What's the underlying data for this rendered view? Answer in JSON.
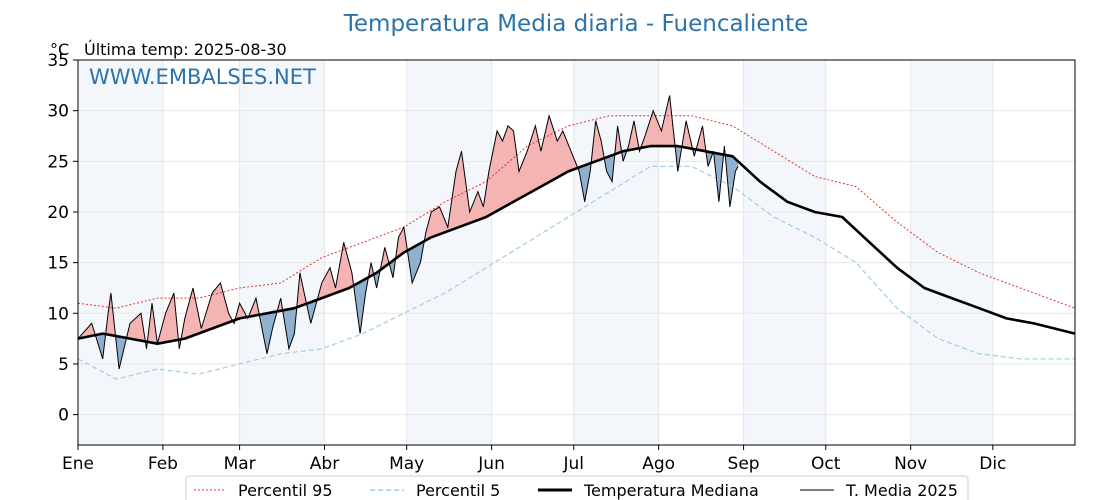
{
  "chart_data": {
    "type": "line",
    "title": "Temperatura Media diaria - Fuencaliente",
    "unit_label": "°C",
    "last_temp_label": "Última temp: 2025-08-30",
    "watermark": "WWW.EMBALSES.NET",
    "ylim": [
      -3,
      35
    ],
    "y_ticks": [
      0,
      5,
      10,
      15,
      20,
      25,
      30,
      35
    ],
    "x_day_range": [
      1,
      365
    ],
    "months": [
      {
        "label": "Ene",
        "start_day": 1
      },
      {
        "label": "Feb",
        "start_day": 32
      },
      {
        "label": "Mar",
        "start_day": 60
      },
      {
        "label": "Abr",
        "start_day": 91
      },
      {
        "label": "May",
        "start_day": 121
      },
      {
        "label": "Jun",
        "start_day": 152
      },
      {
        "label": "Jul",
        "start_day": 182
      },
      {
        "label": "Ago",
        "start_day": 213
      },
      {
        "label": "Sep",
        "start_day": 244
      },
      {
        "label": "Oct",
        "start_day": 274
      },
      {
        "label": "Nov",
        "start_day": 305
      },
      {
        "label": "Dic",
        "start_day": 335
      }
    ],
    "grid": true,
    "legend_position": "bottom",
    "series": [
      {
        "name": "Percentil 95",
        "color": "#e8322e",
        "style": "dotted",
        "days": [
          1,
          15,
          30,
          45,
          60,
          75,
          90,
          105,
          120,
          135,
          150,
          165,
          180,
          195,
          210,
          225,
          240,
          255,
          270,
          285,
          300,
          315,
          330,
          345,
          365
        ],
        "values": [
          11,
          10.5,
          11.5,
          11.5,
          12.5,
          13,
          15.5,
          17,
          18.5,
          21,
          23,
          26.5,
          28.5,
          29.5,
          29.5,
          29.5,
          28.5,
          26,
          23.5,
          22.5,
          19,
          16,
          14,
          12.5,
          10.5
        ]
      },
      {
        "name": "Percentil 5",
        "color": "#9ecfe3",
        "style": "dashed",
        "days": [
          1,
          15,
          30,
          45,
          60,
          75,
          90,
          105,
          120,
          135,
          150,
          165,
          180,
          195,
          210,
          225,
          240,
          255,
          270,
          285,
          300,
          315,
          330,
          345,
          365
        ],
        "values": [
          5.5,
          3.5,
          4.5,
          4,
          5,
          6,
          6.5,
          8,
          10,
          12,
          14.5,
          17,
          19.5,
          22,
          24.5,
          24.5,
          22.5,
          19.5,
          17.5,
          15,
          10.5,
          7.5,
          6,
          5.5,
          5.5
        ]
      },
      {
        "name": "Temperatura Mediana",
        "color": "#000000",
        "style": "thick",
        "days": [
          1,
          10,
          20,
          30,
          40,
          50,
          60,
          70,
          80,
          90,
          100,
          110,
          120,
          130,
          140,
          150,
          160,
          170,
          180,
          190,
          200,
          210,
          220,
          230,
          240,
          250,
          260,
          270,
          280,
          290,
          300,
          310,
          320,
          330,
          340,
          350,
          365
        ],
        "values": [
          7.5,
          8,
          7.5,
          7,
          7.5,
          8.5,
          9.5,
          10,
          10.5,
          11.5,
          12.5,
          14,
          16,
          17.5,
          18.5,
          19.5,
          21,
          22.5,
          24,
          25,
          26,
          26.5,
          26.5,
          26,
          25.5,
          23,
          21,
          20,
          19.5,
          17,
          14.5,
          12.5,
          11.5,
          10.5,
          9.5,
          9,
          8
        ]
      },
      {
        "name": "T. Media 2025",
        "color": "#000000",
        "style": "thin",
        "days": [
          1,
          6,
          10,
          12,
          13,
          16,
          20,
          24,
          26,
          28,
          30,
          33,
          36,
          38,
          40,
          43,
          46,
          50,
          53,
          56,
          58,
          60,
          63,
          66,
          70,
          72,
          75,
          78,
          80,
          82,
          84,
          86,
          88,
          90,
          93,
          95,
          98,
          101,
          104,
          106,
          108,
          110,
          113,
          116,
          118,
          120,
          123,
          126,
          128,
          130,
          133,
          136,
          139,
          141,
          144,
          147,
          149,
          151,
          154,
          156,
          158,
          160,
          162,
          165,
          168,
          170,
          173,
          176,
          178,
          181,
          184,
          186,
          188,
          190,
          192,
          194,
          196,
          198,
          200,
          202,
          204,
          206,
          208,
          211,
          214,
          217,
          220,
          223,
          226,
          229,
          231,
          233,
          235,
          237,
          239,
          241,
          242
        ],
        "values": [
          7.5,
          9,
          5.5,
          10,
          12,
          4.5,
          9,
          10,
          6.5,
          11,
          7,
          10,
          12,
          6.5,
          9.5,
          12.5,
          8.5,
          12,
          13,
          10,
          9,
          11,
          9.5,
          11.5,
          6,
          8.5,
          11.5,
          6.5,
          8,
          14,
          11.5,
          9,
          11,
          13,
          14.5,
          12.5,
          17,
          14,
          8,
          12,
          15,
          12.5,
          16.5,
          13.5,
          17.5,
          18.5,
          13,
          15,
          18,
          20,
          20.5,
          18.5,
          24,
          26,
          20,
          22,
          20.5,
          24,
          28,
          27,
          28.5,
          28,
          24,
          26,
          28.5,
          26,
          29.5,
          27,
          28,
          26,
          24,
          21,
          24,
          29,
          27,
          24,
          23,
          28.5,
          25,
          26.5,
          29,
          26,
          27.5,
          30,
          28,
          31.5,
          24,
          29,
          25.5,
          28.5,
          24.5,
          26,
          21,
          26.5,
          20.5,
          24,
          24.5
        ]
      }
    ]
  }
}
